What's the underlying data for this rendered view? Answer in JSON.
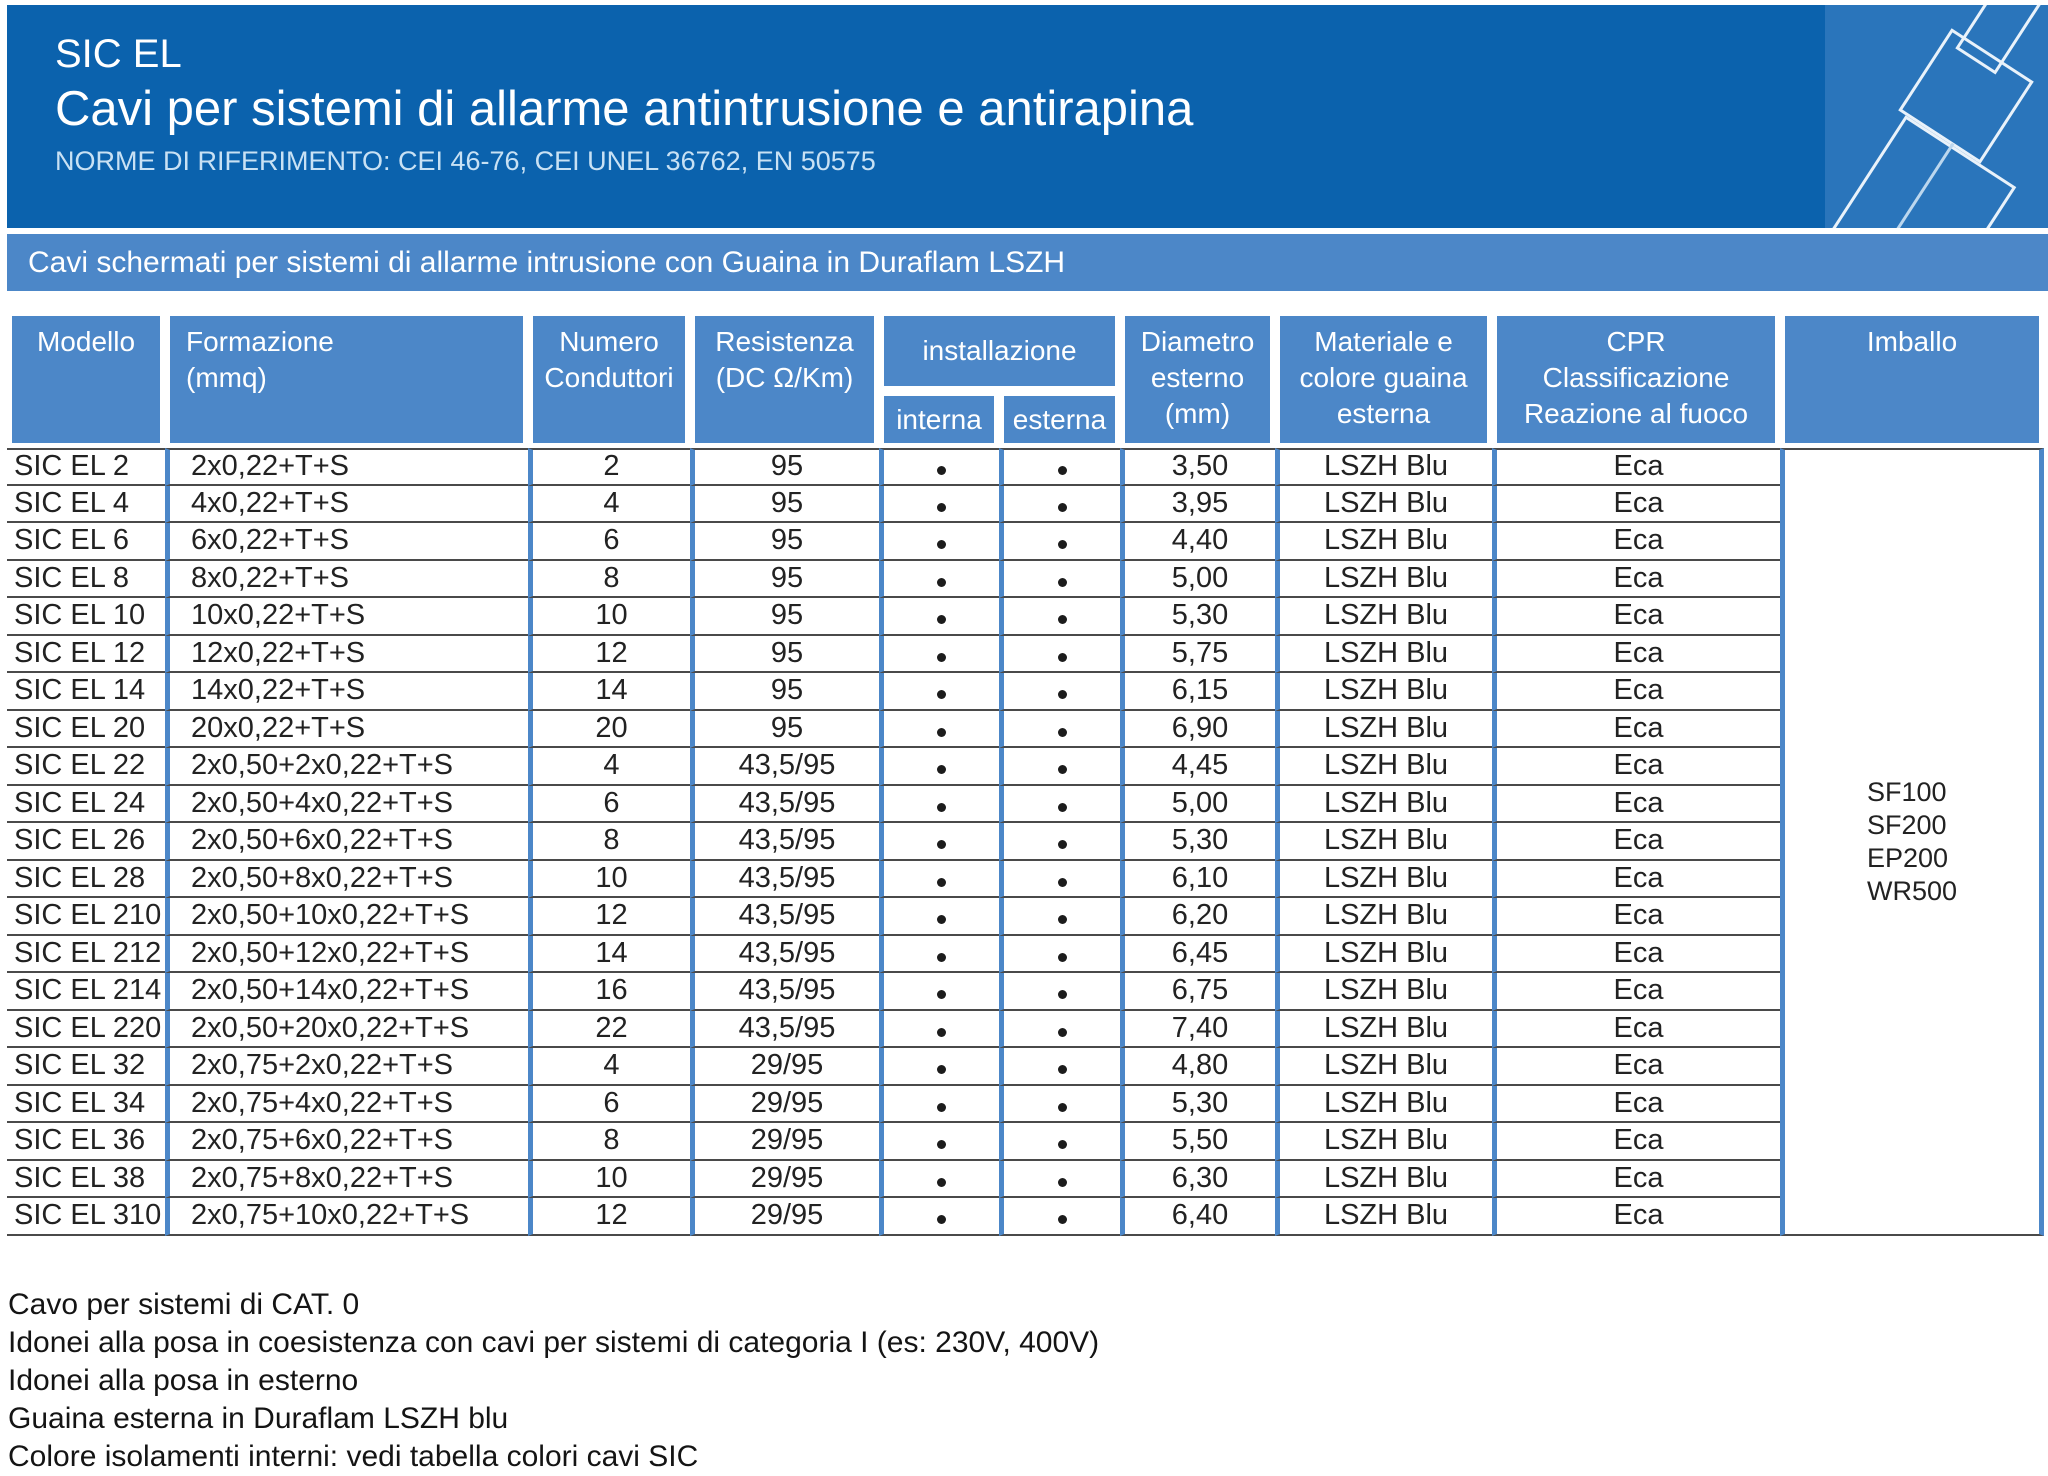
{
  "header": {
    "product_code": "SIC EL",
    "title": "Cavi per sistemi di allarme antintrusione e antirapina",
    "norms": "NORME DI RIFERIMENTO: CEI 46-76, CEI UNEL 36762, EN 50575"
  },
  "banner": {
    "text": "Cavi schermati per sistemi di allarme intrusione con Guaina in Duraflam LSZH"
  },
  "colors": {
    "header_blue": "#0b62ad",
    "logo_blue": "#2a75bb",
    "band_blue": "#4c87c8",
    "row_line": "#4a4a4a",
    "norms_text": "#c8e1f4"
  },
  "table": {
    "headers": {
      "modello": "Modello",
      "formazione": "Formazione\n(mmq)",
      "conduttori": "Numero\nConduttori",
      "resistenza": "Resistenza\n(DC Ω/Km)",
      "installazione": "installazione",
      "interna": "interna",
      "esterna": "esterna",
      "diametro": "Diametro\nesterno\n(mm)",
      "materiale": "Materiale e\ncolore guaina\nesterna",
      "cpr": "CPR\nClassificazione\nReazione al fuoco",
      "imballo": "Imballo"
    },
    "rows": [
      {
        "modello": "SIC EL 2",
        "formazione": "2x0,22+T+S",
        "conduttori": "2",
        "resistenza": "95",
        "interna": true,
        "esterna": true,
        "diametro": "3,50",
        "guaina": "LSZH Blu",
        "cpr": "Eca"
      },
      {
        "modello": "SIC EL 4",
        "formazione": "4x0,22+T+S",
        "conduttori": "4",
        "resistenza": "95",
        "interna": true,
        "esterna": true,
        "diametro": "3,95",
        "guaina": "LSZH Blu",
        "cpr": "Eca"
      },
      {
        "modello": "SIC EL 6",
        "formazione": "6x0,22+T+S",
        "conduttori": "6",
        "resistenza": "95",
        "interna": true,
        "esterna": true,
        "diametro": "4,40",
        "guaina": "LSZH Blu",
        "cpr": "Eca"
      },
      {
        "modello": "SIC EL 8",
        "formazione": "8x0,22+T+S",
        "conduttori": "8",
        "resistenza": "95",
        "interna": true,
        "esterna": true,
        "diametro": "5,00",
        "guaina": "LSZH Blu",
        "cpr": "Eca"
      },
      {
        "modello": "SIC EL 10",
        "formazione": "10x0,22+T+S",
        "conduttori": "10",
        "resistenza": "95",
        "interna": true,
        "esterna": true,
        "diametro": "5,30",
        "guaina": "LSZH Blu",
        "cpr": "Eca"
      },
      {
        "modello": "SIC EL 12",
        "formazione": "12x0,22+T+S",
        "conduttori": "12",
        "resistenza": "95",
        "interna": true,
        "esterna": true,
        "diametro": "5,75",
        "guaina": "LSZH Blu",
        "cpr": "Eca"
      },
      {
        "modello": "SIC EL 14",
        "formazione": "14x0,22+T+S",
        "conduttori": "14",
        "resistenza": "95",
        "interna": true,
        "esterna": true,
        "diametro": "6,15",
        "guaina": "LSZH Blu",
        "cpr": "Eca"
      },
      {
        "modello": "SIC EL 20",
        "formazione": "20x0,22+T+S",
        "conduttori": "20",
        "resistenza": "95",
        "interna": true,
        "esterna": true,
        "diametro": "6,90",
        "guaina": "LSZH Blu",
        "cpr": "Eca"
      },
      {
        "modello": "SIC EL 22",
        "formazione": "2x0,50+2x0,22+T+S",
        "conduttori": "4",
        "resistenza": "43,5/95",
        "interna": true,
        "esterna": true,
        "diametro": "4,45",
        "guaina": "LSZH Blu",
        "cpr": "Eca"
      },
      {
        "modello": "SIC EL 24",
        "formazione": "2x0,50+4x0,22+T+S",
        "conduttori": "6",
        "resistenza": "43,5/95",
        "interna": true,
        "esterna": true,
        "diametro": "5,00",
        "guaina": "LSZH Blu",
        "cpr": "Eca"
      },
      {
        "modello": "SIC EL 26",
        "formazione": "2x0,50+6x0,22+T+S",
        "conduttori": "8",
        "resistenza": "43,5/95",
        "interna": true,
        "esterna": true,
        "diametro": "5,30",
        "guaina": "LSZH Blu",
        "cpr": "Eca"
      },
      {
        "modello": "SIC EL 28",
        "formazione": "2x0,50+8x0,22+T+S",
        "conduttori": "10",
        "resistenza": "43,5/95",
        "interna": true,
        "esterna": true,
        "diametro": "6,10",
        "guaina": "LSZH Blu",
        "cpr": "Eca"
      },
      {
        "modello": "SIC EL 210",
        "formazione": "2x0,50+10x0,22+T+S",
        "conduttori": "12",
        "resistenza": "43,5/95",
        "interna": true,
        "esterna": true,
        "diametro": "6,20",
        "guaina": "LSZH Blu",
        "cpr": "Eca"
      },
      {
        "modello": "SIC EL 212",
        "formazione": "2x0,50+12x0,22+T+S",
        "conduttori": "14",
        "resistenza": "43,5/95",
        "interna": true,
        "esterna": true,
        "diametro": "6,45",
        "guaina": "LSZH Blu",
        "cpr": "Eca"
      },
      {
        "modello": "SIC EL 214",
        "formazione": "2x0,50+14x0,22+T+S",
        "conduttori": "16",
        "resistenza": "43,5/95",
        "interna": true,
        "esterna": true,
        "diametro": "6,75",
        "guaina": "LSZH Blu",
        "cpr": "Eca"
      },
      {
        "modello": "SIC EL 220",
        "formazione": "2x0,50+20x0,22+T+S",
        "conduttori": "22",
        "resistenza": "43,5/95",
        "interna": true,
        "esterna": true,
        "diametro": "7,40",
        "guaina": "LSZH Blu",
        "cpr": "Eca"
      },
      {
        "modello": "SIC EL 32",
        "formazione": "2x0,75+2x0,22+T+S",
        "conduttori": "4",
        "resistenza": "29/95",
        "interna": true,
        "esterna": true,
        "diametro": "4,80",
        "guaina": "LSZH Blu",
        "cpr": "Eca"
      },
      {
        "modello": "SIC EL 34",
        "formazione": "2x0,75+4x0,22+T+S",
        "conduttori": "6",
        "resistenza": "29/95",
        "interna": true,
        "esterna": true,
        "diametro": "5,30",
        "guaina": "LSZH Blu",
        "cpr": "Eca"
      },
      {
        "modello": "SIC EL 36",
        "formazione": "2x0,75+6x0,22+T+S",
        "conduttori": "8",
        "resistenza": "29/95",
        "interna": true,
        "esterna": true,
        "diametro": "5,50",
        "guaina": "LSZH Blu",
        "cpr": "Eca"
      },
      {
        "modello": "SIC EL 38",
        "formazione": "2x0,75+8x0,22+T+S",
        "conduttori": "10",
        "resistenza": "29/95",
        "interna": true,
        "esterna": true,
        "diametro": "6,30",
        "guaina": "LSZH Blu",
        "cpr": "Eca"
      },
      {
        "modello": "SIC EL 310",
        "formazione": "2x0,75+10x0,22+T+S",
        "conduttori": "12",
        "resistenza": "29/95",
        "interna": true,
        "esterna": true,
        "diametro": "6,40",
        "guaina": "LSZH Blu",
        "cpr": "Eca"
      }
    ],
    "imballo_codes": [
      "SF100",
      "SF200",
      "EP200",
      "WR500"
    ]
  },
  "notes": [
    "Cavo per sistemi di CAT. 0",
    "Idonei alla posa in coesistenza con cavi per sistemi di categoria I (es: 230V, 400V)",
    "Idonei alla posa in esterno",
    "Guaina esterna in Duraflam LSZH blu",
    "Colore isolamenti interni: vedi tabella colori cavi SIC"
  ]
}
